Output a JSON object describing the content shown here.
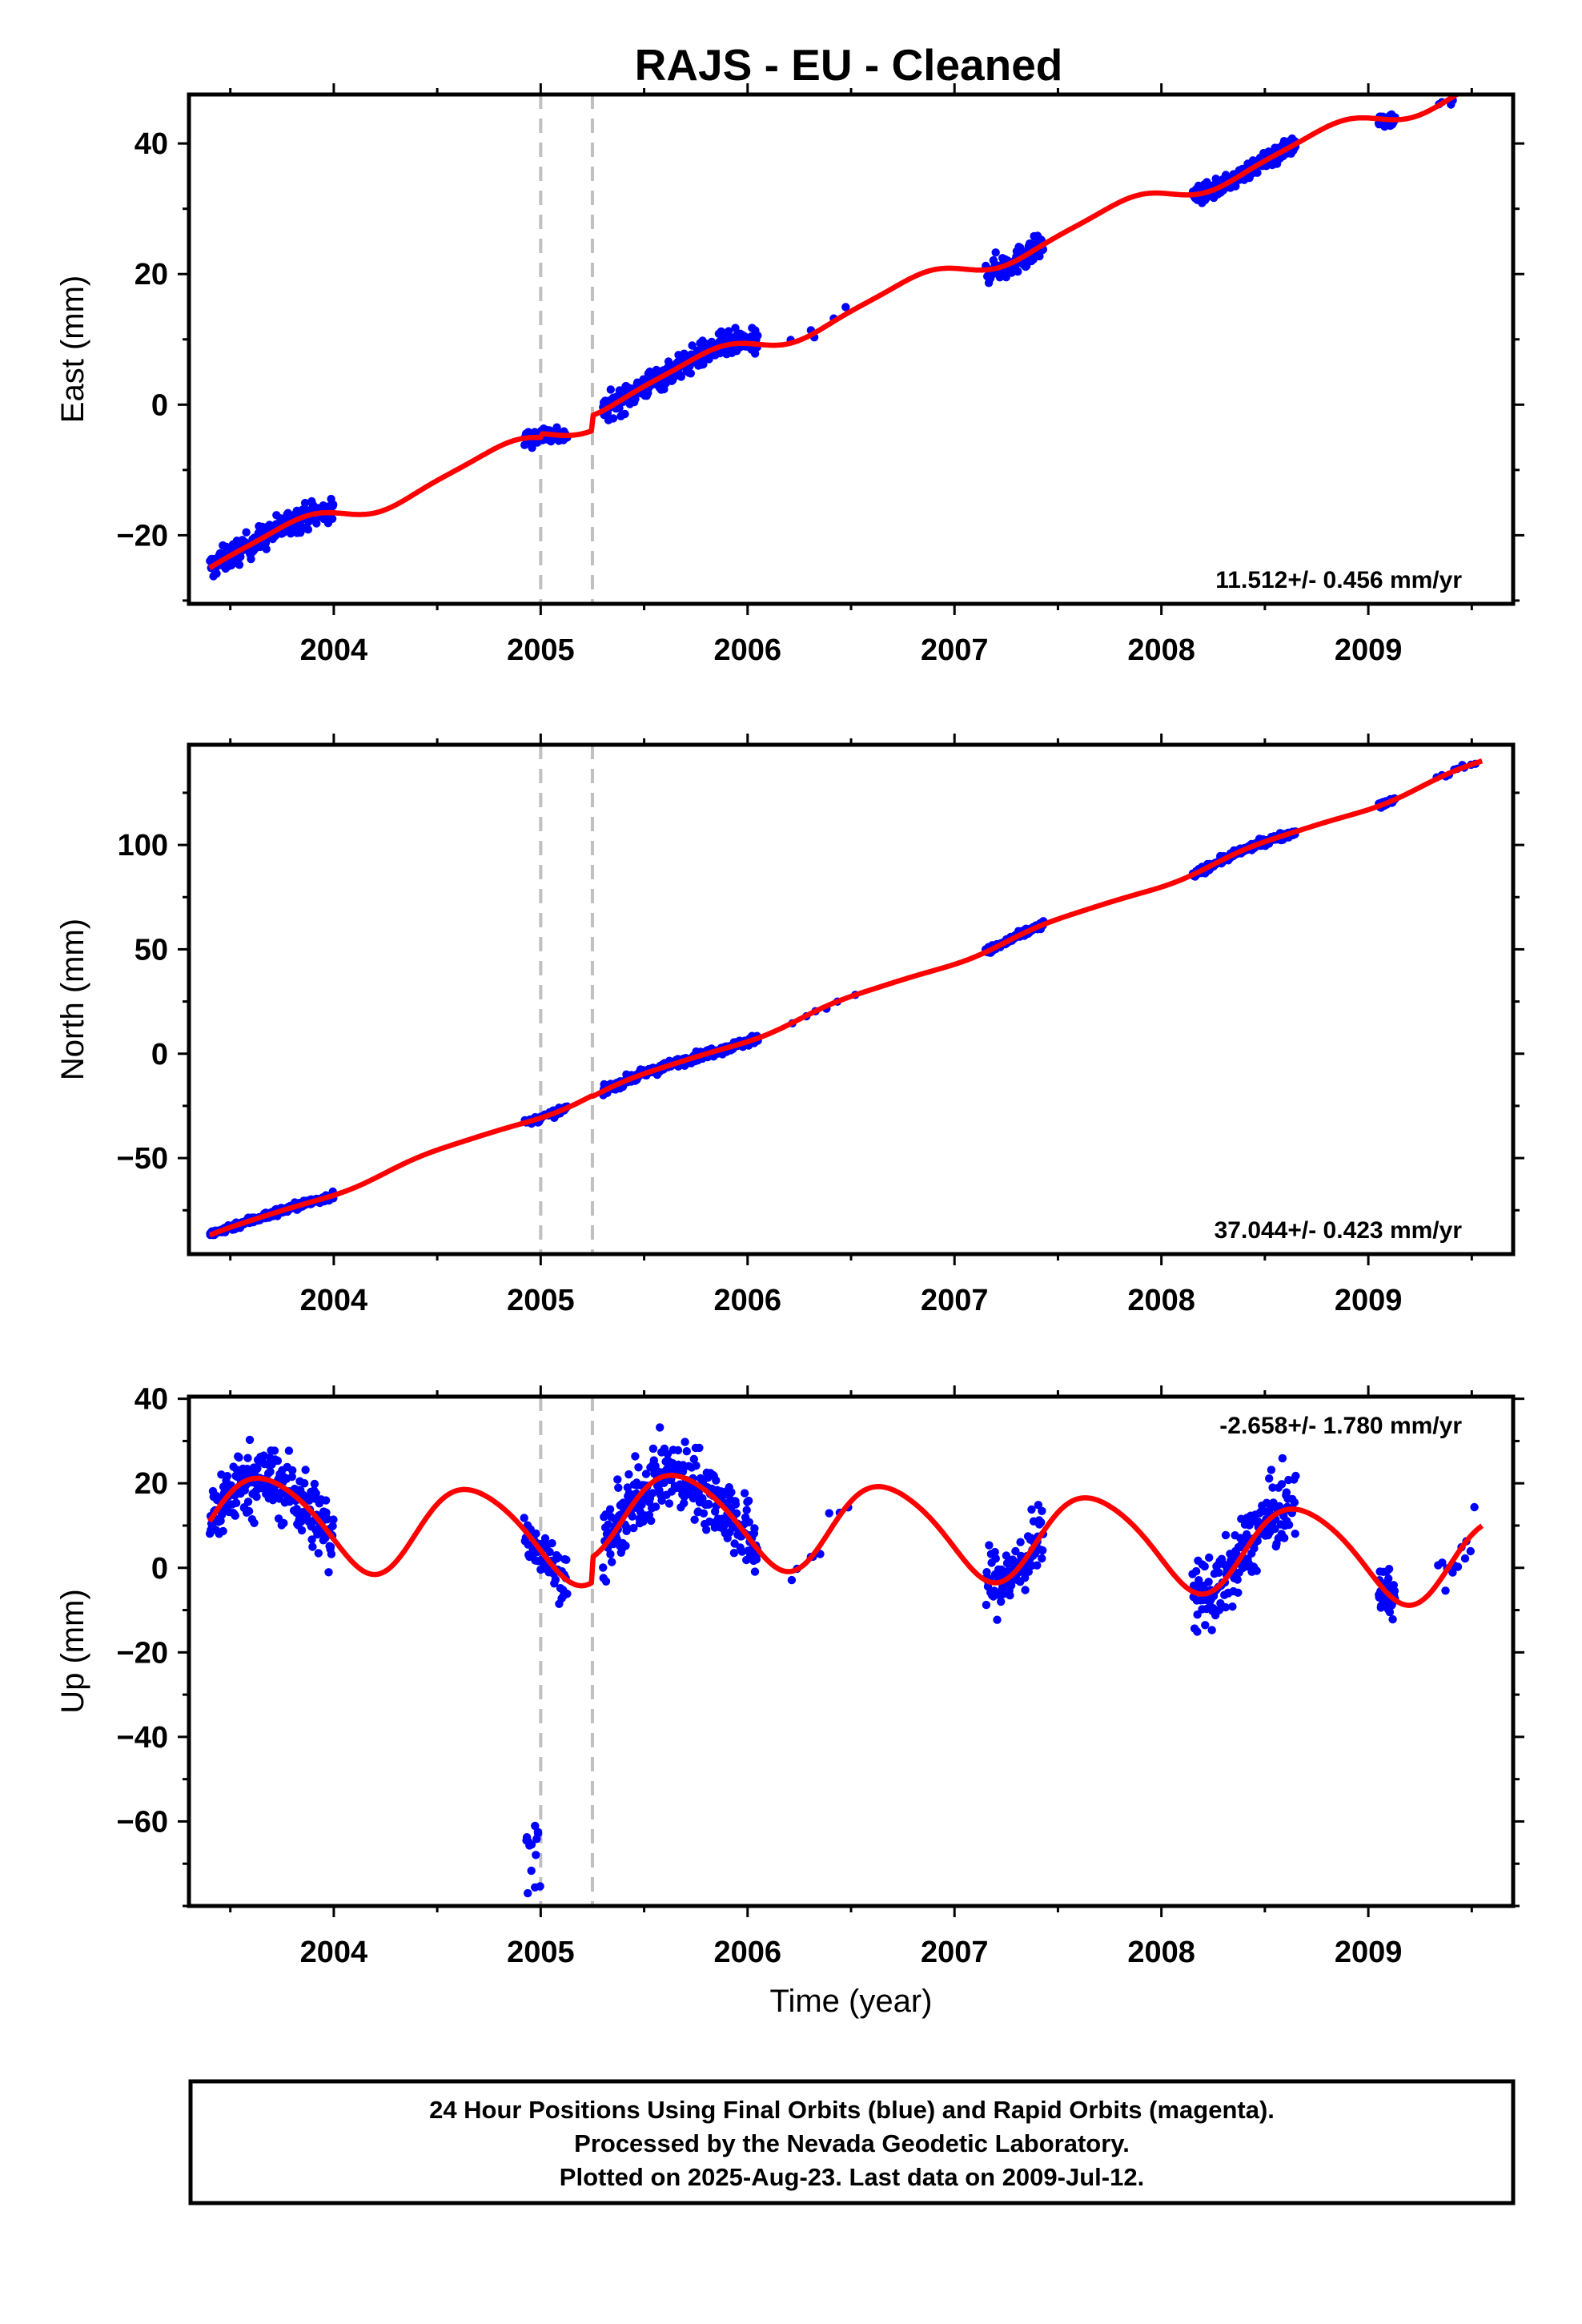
{
  "title": "RAJS  - EU - Cleaned",
  "colors": {
    "data": "#0000ff",
    "model": "#ff0000",
    "break_line": "#c0c0c0",
    "frame": "#000000"
  },
  "footer": {
    "lines": [
      "24 Hour Positions Using Final Orbits (blue) and Rapid Orbits (magenta).",
      "Processed by the Nevada Geodetic Laboratory.",
      "Plotted on 2025-Aug-23. Last data on 2009-Jul-12."
    ]
  },
  "chart_data": [
    {
      "type": "scatter",
      "ylabel": "East (mm)",
      "xlabel": "",
      "xlim": [
        2003.3,
        2009.7
      ],
      "ylim": [
        -30.5,
        47.5
      ],
      "xticks": [
        2004,
        2005,
        2006,
        2007,
        2008,
        2009
      ],
      "yticks": [
        -20,
        0,
        20,
        40
      ],
      "rate_label": "11.512+/- 0.456 mm/yr",
      "rate_position": "bottom-right",
      "breaks": [
        2005.0,
        2005.25
      ],
      "model_params": {
        "trend": 11.512,
        "annual_amp": 1.6,
        "annual_phase": 5.4,
        "semi_amp": 0.35,
        "semi_phase": 1.2,
        "t0": 2003.4,
        "offset_at_2003_4": -25.0,
        "step_2005_0": 0.6,
        "step_2005_25": 2.3
      },
      "series": [
        {
          "name": "Final Orbits",
          "role": "data",
          "segments": [
            {
              "x0": 2003.4,
              "x1": 2004.0,
              "n": 220,
              "noise": 1.4
            },
            {
              "x0": 2004.92,
              "x1": 2005.13,
              "n": 55,
              "noise": 1.0
            },
            {
              "x0": 2005.3,
              "x1": 2006.05,
              "n": 280,
              "noise": 1.4
            },
            {
              "x0": 2006.2,
              "x1": 2006.5,
              "n": 5,
              "noise": 1.0
            },
            {
              "x0": 2007.15,
              "x1": 2007.43,
              "n": 110,
              "noise": 1.4
            },
            {
              "x0": 2008.15,
              "x1": 2008.65,
              "n": 190,
              "noise": 0.9
            },
            {
              "x0": 2009.05,
              "x1": 2009.13,
              "n": 40,
              "noise": 0.8
            },
            {
              "x0": 2009.33,
              "x1": 2009.52,
              "n": 10,
              "noise": 1.2
            }
          ]
        },
        {
          "name": "Model",
          "role": "model",
          "x_range": [
            2003.4,
            2009.55
          ]
        }
      ]
    },
    {
      "type": "scatter",
      "ylabel": "North (mm)",
      "xlabel": "",
      "xlim": [
        2003.3,
        2009.7
      ],
      "ylim": [
        -96,
        148
      ],
      "xticks": [
        2004,
        2005,
        2006,
        2007,
        2008,
        2009
      ],
      "yticks": [
        -50,
        0,
        50,
        100
      ],
      "rate_label": "37.044+/- 0.423 mm/yr",
      "rate_position": "bottom-right",
      "breaks": [
        2005.0,
        2005.25
      ],
      "model_params": {
        "trend": 37.044,
        "annual_amp": 1.6,
        "annual_phase": 0.8,
        "semi_amp": 0.3,
        "semi_phase": 2.1,
        "t0": 2003.4,
        "offset_at_2003_4": -87.0,
        "step_2005_0": 0.0,
        "step_2005_25": -0.5
      },
      "series": [
        {
          "name": "Final Orbits",
          "role": "data",
          "segments": [
            {
              "x0": 2003.4,
              "x1": 2004.0,
              "n": 210,
              "noise": 1.3
            },
            {
              "x0": 2004.92,
              "x1": 2005.13,
              "n": 45,
              "noise": 1.2
            },
            {
              "x0": 2005.3,
              "x1": 2006.05,
              "n": 260,
              "noise": 1.5
            },
            {
              "x0": 2006.2,
              "x1": 2006.55,
              "n": 6,
              "noise": 1.0
            },
            {
              "x0": 2007.15,
              "x1": 2007.43,
              "n": 100,
              "noise": 1.3
            },
            {
              "x0": 2008.15,
              "x1": 2008.65,
              "n": 180,
              "noise": 1.2
            },
            {
              "x0": 2009.05,
              "x1": 2009.13,
              "n": 35,
              "noise": 1.0
            },
            {
              "x0": 2009.33,
              "x1": 2009.52,
              "n": 10,
              "noise": 1.0
            }
          ]
        },
        {
          "name": "Model",
          "role": "model",
          "x_range": [
            2003.4,
            2009.55
          ]
        }
      ]
    },
    {
      "type": "scatter",
      "ylabel": "Up (mm)",
      "xlabel": "Time (year)",
      "xlim": [
        2003.3,
        2009.7
      ],
      "ylim": [
        -80,
        40.5
      ],
      "xticks": [
        2004,
        2005,
        2006,
        2007,
        2008,
        2009
      ],
      "yticks": [
        -60,
        -40,
        -20,
        0,
        20,
        40
      ],
      "rate_label": "-2.658+/- 1.780 mm/yr",
      "rate_position": "top-right",
      "breaks": [
        2005.0,
        2005.25
      ],
      "model_params": {
        "trend": -2.658,
        "annual_amp": 10.5,
        "annual_phase": -0.15,
        "semi_amp": 1.2,
        "semi_phase": 0.5,
        "t0": 2003.4,
        "offset_at_2003_4": 11.0,
        "step_2005_0": 0.0,
        "step_2005_25": 6.0
      },
      "outliers": {
        "x0": 2004.93,
        "x1": 2005.01,
        "y0": -78,
        "y1": -61,
        "n": 14
      },
      "series": [
        {
          "name": "Final Orbits",
          "role": "data",
          "segments": [
            {
              "x0": 2003.4,
              "x1": 2004.0,
              "n": 230,
              "noise": 6.0
            },
            {
              "x0": 2004.92,
              "x1": 2005.13,
              "n": 60,
              "noise": 4.0
            },
            {
              "x0": 2005.3,
              "x1": 2006.05,
              "n": 290,
              "noise": 6.0
            },
            {
              "x0": 2006.2,
              "x1": 2006.5,
              "n": 8,
              "noise": 4.0
            },
            {
              "x0": 2007.15,
              "x1": 2007.43,
              "n": 110,
              "noise": 5.5
            },
            {
              "x0": 2008.15,
              "x1": 2008.65,
              "n": 190,
              "noise": 6.0
            },
            {
              "x0": 2009.05,
              "x1": 2009.13,
              "n": 40,
              "noise": 4.0
            },
            {
              "x0": 2009.33,
              "x1": 2009.52,
              "n": 12,
              "noise": 4.0
            }
          ]
        },
        {
          "name": "Model",
          "role": "model",
          "x_range": [
            2003.4,
            2009.55
          ]
        }
      ]
    }
  ]
}
